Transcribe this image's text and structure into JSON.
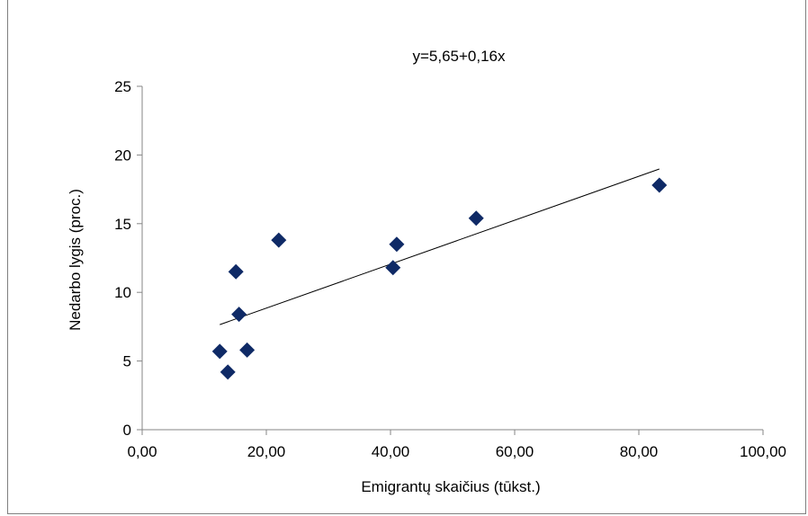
{
  "chart_data": {
    "type": "scatter",
    "title": "y=5,65+0,16x",
    "xlabel": "Emigrantų skaičius (tūkst.)",
    "ylabel": "Nedarbo lygis (proc.)",
    "xlim": [
      0,
      100
    ],
    "ylim": [
      0,
      25
    ],
    "x_ticks": [
      0,
      20,
      40,
      60,
      80,
      100
    ],
    "x_tick_labels": [
      "0,00",
      "20,00",
      "40,00",
      "60,00",
      "80,00",
      "100,00"
    ],
    "y_ticks": [
      0,
      5,
      10,
      15,
      20,
      25
    ],
    "y_tick_labels": [
      "0",
      "5",
      "10",
      "15",
      "20",
      "25"
    ],
    "grid": false,
    "marker": "diamond",
    "marker_color": "#0f2a66",
    "trendline_color": "#000000",
    "points": [
      {
        "x": 12.5,
        "y": 5.7
      },
      {
        "x": 13.8,
        "y": 4.2
      },
      {
        "x": 15.1,
        "y": 11.5
      },
      {
        "x": 15.6,
        "y": 8.4
      },
      {
        "x": 16.9,
        "y": 5.8
      },
      {
        "x": 22.0,
        "y": 13.8
      },
      {
        "x": 40.4,
        "y": 11.8
      },
      {
        "x": 41.0,
        "y": 13.5
      },
      {
        "x": 53.8,
        "y": 15.4
      },
      {
        "x": 83.3,
        "y": 17.8
      }
    ],
    "trendline": {
      "intercept": 5.65,
      "slope": 0.16,
      "x_range": [
        12.5,
        83.3
      ]
    }
  }
}
